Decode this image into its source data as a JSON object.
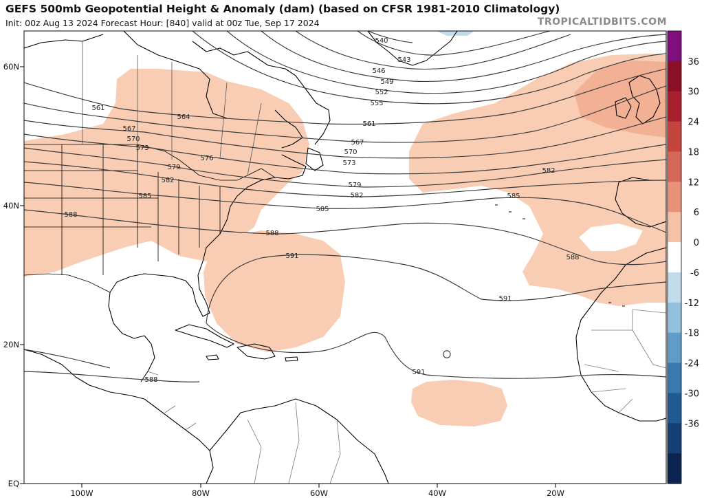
{
  "header": {
    "title": "GEFS 500mb Geopotential Height & Anomaly (dam) (based on CFSR 1981-2010 Climatology)",
    "subtitle": "Init: 00z Aug 13 2024   Forecast Hour: [840]   valid at 00z Tue, Sep 17 2024",
    "brand": "TROPICALTIDBITS.COM"
  },
  "axes": {
    "lat_labels": [
      "60N",
      "40N",
      "20N",
      "EQ"
    ],
    "lon_labels": [
      "100W",
      "80W",
      "60W",
      "40W",
      "20W"
    ]
  },
  "contour_labels": [
    "540",
    "543",
    "546",
    "549",
    "552",
    "555",
    "561",
    "561",
    "564",
    "567",
    "567",
    "570",
    "570",
    "573",
    "573",
    "576",
    "579",
    "579",
    "582",
    "582",
    "582",
    "585",
    "585",
    "585",
    "588",
    "588",
    "588",
    "588",
    "591",
    "591",
    "591"
  ],
  "colorbar": {
    "labels": [
      "36",
      "30",
      "24",
      "18",
      "12",
      "6",
      "0",
      "-6",
      "-12",
      "-18",
      "-24",
      "-30",
      "-36"
    ],
    "colors": [
      "#7f0f7a",
      "#8b1028",
      "#a8202e",
      "#c3453d",
      "#d6685a",
      "#e8927a",
      "#f5c2a8",
      "#ffffff",
      "#c3dcec",
      "#93c0dc",
      "#5f9cc8",
      "#3a78b0",
      "#215a93",
      "#163f73",
      "#0c2550"
    ]
  },
  "colors": {
    "anomaly_light": "#f8cdb4",
    "anomaly_medium": "#f2b095",
    "contour": "#3a3a3a",
    "coast": "#000000",
    "border": "#777777"
  }
}
